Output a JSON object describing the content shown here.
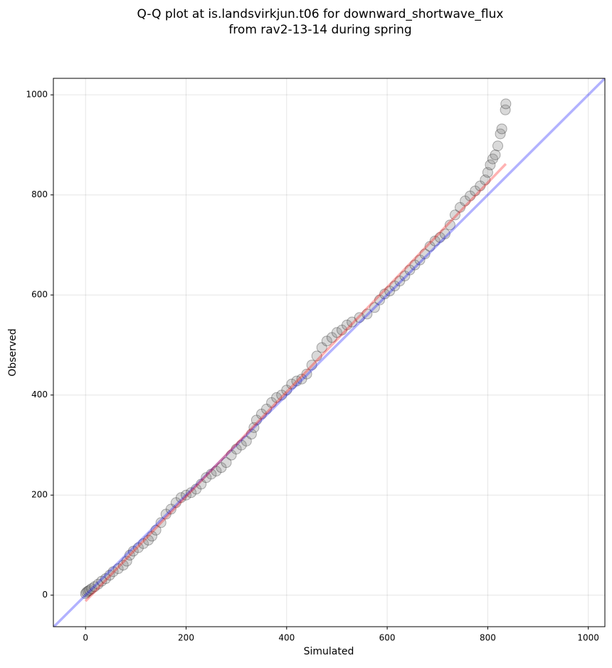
{
  "chart_data": {
    "type": "scatter",
    "title": [
      "Q-Q plot at is.landsvirkjun.t06 for downward_shortwave_flux",
      "from rav2-13-14 during spring"
    ],
    "x_label": "Simulated",
    "y_label": "Observed",
    "xlim": [
      -64,
      1033
    ],
    "ylim": [
      -63,
      1033
    ],
    "xticks": [
      0,
      200,
      400,
      600,
      800,
      1000
    ],
    "yticks": [
      0,
      200,
      400,
      600,
      800,
      1000
    ],
    "grid": true,
    "points": {
      "color": "#808080",
      "x": [
        0,
        2,
        5,
        8,
        12,
        18,
        25,
        32,
        40,
        48,
        55,
        65,
        75,
        82,
        88,
        95,
        105,
        115,
        125,
        132,
        140,
        150,
        160,
        170,
        180,
        190,
        200,
        210,
        220,
        230,
        240,
        250,
        260,
        270,
        280,
        290,
        300,
        310,
        320,
        330,
        335,
        340,
        350,
        360,
        370,
        380,
        390,
        400,
        410,
        420,
        430,
        440,
        450,
        460,
        470,
        480,
        490,
        500,
        510,
        520,
        530,
        545,
        560,
        575,
        585,
        595,
        605,
        615,
        625,
        635,
        645,
        655,
        665,
        675,
        685,
        695,
        705,
        715,
        725,
        735,
        745,
        755,
        765,
        775,
        785,
        795,
        800,
        805,
        810,
        815,
        820,
        825,
        828,
        835,
        836
      ],
      "y": [
        3,
        6,
        8,
        10,
        13,
        17,
        22,
        28,
        33,
        40,
        47,
        53,
        60,
        68,
        80,
        88,
        95,
        103,
        110,
        118,
        130,
        145,
        162,
        172,
        185,
        195,
        200,
        205,
        212,
        222,
        235,
        242,
        248,
        255,
        265,
        280,
        292,
        300,
        308,
        322,
        335,
        350,
        362,
        372,
        385,
        395,
        400,
        410,
        422,
        428,
        432,
        442,
        460,
        478,
        495,
        508,
        515,
        525,
        530,
        540,
        546,
        555,
        562,
        575,
        590,
        602,
        608,
        618,
        628,
        638,
        650,
        660,
        670,
        682,
        697,
        708,
        715,
        722,
        740,
        760,
        775,
        788,
        798,
        808,
        818,
        830,
        845,
        860,
        872,
        880,
        898,
        922,
        932,
        970,
        982
      ]
    },
    "lines": [
      {
        "color": "#0000ff",
        "x": [
          -64,
          1033
        ],
        "y": [
          -64,
          1033
        ]
      },
      {
        "color": "#ff0000",
        "x": [
          0,
          836
        ],
        "y": [
          -12,
          862
        ]
      }
    ]
  }
}
